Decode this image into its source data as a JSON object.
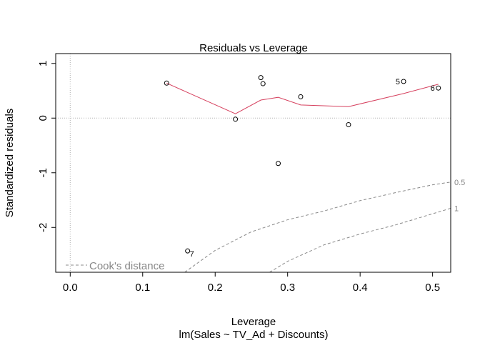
{
  "chart_data": {
    "type": "scatter",
    "title": "Residuals vs Leverage",
    "xlabel": "Leverage",
    "subtitle": "lm(Sales ~ TV_Ad + Discounts)",
    "ylabel": "Standardized residuals",
    "xlim": [
      -0.02,
      0.525
    ],
    "ylim": [
      -2.82,
      1.18
    ],
    "x_ticks": [
      {
        "value": 0.0,
        "label": "0.0"
      },
      {
        "value": 0.1,
        "label": "0.1"
      },
      {
        "value": 0.2,
        "label": "0.2"
      },
      {
        "value": 0.3,
        "label": "0.3"
      },
      {
        "value": 0.4,
        "label": "0.4"
      },
      {
        "value": 0.5,
        "label": "0.5"
      }
    ],
    "y_ticks": [
      {
        "value": -2,
        "label": "-2"
      },
      {
        "value": -1,
        "label": "-1"
      },
      {
        "value": 0,
        "label": "0"
      },
      {
        "value": 1,
        "label": "1"
      }
    ],
    "points": [
      {
        "x": 0.133,
        "y": 0.64,
        "label": ""
      },
      {
        "x": 0.162,
        "y": -2.43,
        "label": "7"
      },
      {
        "x": 0.228,
        "y": -0.02,
        "label": ""
      },
      {
        "x": 0.263,
        "y": 0.74,
        "label": ""
      },
      {
        "x": 0.266,
        "y": 0.63,
        "label": ""
      },
      {
        "x": 0.287,
        "y": -0.83,
        "label": ""
      },
      {
        "x": 0.318,
        "y": 0.39,
        "label": ""
      },
      {
        "x": 0.384,
        "y": -0.12,
        "label": ""
      },
      {
        "x": 0.46,
        "y": 0.67,
        "label": "5"
      },
      {
        "x": 0.508,
        "y": 0.55,
        "label": "6"
      }
    ],
    "smooth_line": [
      {
        "x": 0.133,
        "y": 0.64
      },
      {
        "x": 0.16,
        "y": 0.48
      },
      {
        "x": 0.228,
        "y": 0.08
      },
      {
        "x": 0.263,
        "y": 0.33
      },
      {
        "x": 0.287,
        "y": 0.38
      },
      {
        "x": 0.318,
        "y": 0.24
      },
      {
        "x": 0.384,
        "y": 0.21
      },
      {
        "x": 0.46,
        "y": 0.45
      },
      {
        "x": 0.508,
        "y": 0.62
      }
    ],
    "cooks_contours": [
      {
        "level_label": "0.5",
        "points": [
          [
            0.158,
            -2.82
          ],
          [
            0.2,
            -2.42
          ],
          [
            0.25,
            -2.08
          ],
          [
            0.3,
            -1.86
          ],
          [
            0.35,
            -1.7
          ],
          [
            0.4,
            -1.51
          ],
          [
            0.45,
            -1.36
          ],
          [
            0.5,
            -1.22
          ],
          [
            0.525,
            -1.17
          ]
        ]
      },
      {
        "level_label": "1",
        "points": [
          [
            0.275,
            -2.82
          ],
          [
            0.3,
            -2.62
          ],
          [
            0.35,
            -2.32
          ],
          [
            0.4,
            -2.12
          ],
          [
            0.45,
            -1.95
          ],
          [
            0.5,
            -1.75
          ],
          [
            0.525,
            -1.65
          ]
        ]
      }
    ],
    "legend": {
      "label": "Cook's distance",
      "position": "bottom-left"
    },
    "colors": {
      "smooth": "#d6405e",
      "contour": "#888888",
      "reference": "#b3b3b3",
      "axis": "#000000"
    }
  }
}
